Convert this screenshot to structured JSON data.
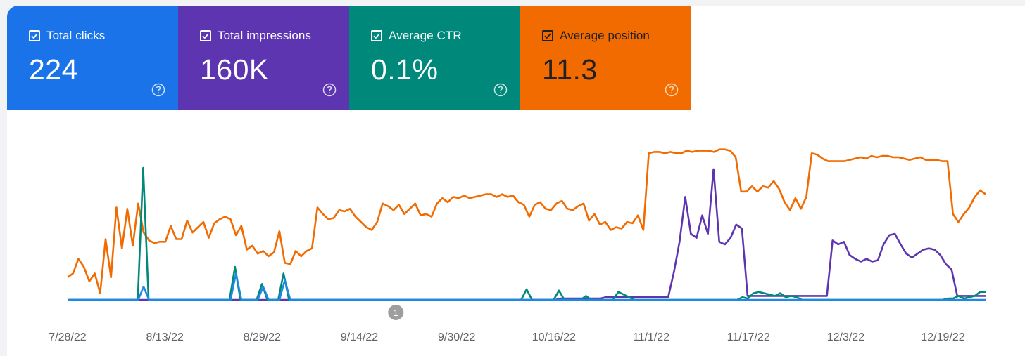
{
  "metrics": [
    {
      "label": "Total clicks",
      "value": "224",
      "color": "#1a73e8",
      "checked": true
    },
    {
      "label": "Total impressions",
      "value": "160K",
      "color": "#5e35b1",
      "checked": true
    },
    {
      "label": "Average CTR",
      "value": "0.1%",
      "color": "#00897b",
      "checked": true
    },
    {
      "label": "Average position",
      "value": "11.3",
      "color": "#f16b00",
      "checked": true
    }
  ],
  "icons": {
    "checkbox": "check-icon",
    "help": "help-circle-icon"
  },
  "chart_data": {
    "type": "line",
    "x_start": "7/28/22",
    "x_end": "12/26/22",
    "x_tick_labels": [
      "7/28/22",
      "8/13/22",
      "8/29/22",
      "9/14/22",
      "9/30/22",
      "10/16/22",
      "11/1/22",
      "11/17/22",
      "12/3/22",
      "12/19/22"
    ],
    "y_axis_visible": false,
    "grid": false,
    "legend": "metric cards above chart",
    "annotations": [
      {
        "label": "1",
        "x": "9/20/22"
      }
    ],
    "series": [
      {
        "name": "Average position",
        "color": "#f16b00",
        "values": [
          0.17,
          0.2,
          0.31,
          0.25,
          0.14,
          0.2,
          0.05,
          0.46,
          0.17,
          0.7,
          0.39,
          0.69,
          0.41,
          0.73,
          0.51,
          0.45,
          0.43,
          0.44,
          0.44,
          0.56,
          0.46,
          0.46,
          0.6,
          0.51,
          0.55,
          0.59,
          0.47,
          0.58,
          0.61,
          0.63,
          0.61,
          0.49,
          0.56,
          0.38,
          0.41,
          0.35,
          0.37,
          0.33,
          0.36,
          0.52,
          0.28,
          0.27,
          0.37,
          0.33,
          0.37,
          0.39,
          0.7,
          0.65,
          0.61,
          0.62,
          0.68,
          0.67,
          0.69,
          0.63,
          0.59,
          0.55,
          0.53,
          0.59,
          0.73,
          0.71,
          0.68,
          0.72,
          0.65,
          0.69,
          0.73,
          0.64,
          0.65,
          0.63,
          0.73,
          0.77,
          0.74,
          0.78,
          0.77,
          0.79,
          0.77,
          0.78,
          0.79,
          0.8,
          0.8,
          0.78,
          0.8,
          0.78,
          0.79,
          0.74,
          0.72,
          0.63,
          0.72,
          0.74,
          0.69,
          0.68,
          0.73,
          0.75,
          0.69,
          0.68,
          0.71,
          0.73,
          0.6,
          0.65,
          0.57,
          0.59,
          0.53,
          0.55,
          0.54,
          0.59,
          0.58,
          0.64,
          0.53,
          1.11,
          1.12,
          1.12,
          1.11,
          1.12,
          1.11,
          1.11,
          1.13,
          1.12,
          1.13,
          1.13,
          1.13,
          1.12,
          1.14,
          1.14,
          1.13,
          1.08,
          0.82,
          0.82,
          0.86,
          0.82,
          0.86,
          0.85,
          0.9,
          0.84,
          0.74,
          0.68,
          0.77,
          0.69,
          0.78,
          1.11,
          1.1,
          1.07,
          1.05,
          1.05,
          1.05,
          1.05,
          1.06,
          1.07,
          1.08,
          1.07,
          1.09,
          1.08,
          1.09,
          1.09,
          1.08,
          1.08,
          1.07,
          1.06,
          1.07,
          1.08,
          1.06,
          1.06,
          1.06,
          1.05,
          1.05,
          0.65,
          0.59,
          0.65,
          0.7,
          0.78,
          0.83,
          0.8
        ]
      },
      {
        "name": "Total impressions",
        "color": "#5e35b1",
        "values": [
          0.0,
          0.0,
          0.0,
          0.0,
          0.0,
          0.0,
          0.0,
          0.0,
          0.0,
          0.0,
          0.0,
          0.0,
          0.0,
          0.0,
          0.0,
          0.0,
          0.0,
          0.0,
          0.0,
          0.0,
          0.0,
          0.0,
          0.0,
          0.0,
          0.0,
          0.0,
          0.0,
          0.0,
          0.0,
          0.0,
          0.0,
          0.0,
          0.0,
          0.0,
          0.0,
          0.0,
          0.0,
          0.0,
          0.0,
          0.0,
          0.0,
          0.0,
          0.0,
          0.0,
          0.0,
          0.0,
          0.0,
          0.0,
          0.0,
          0.0,
          0.0,
          0.0,
          0.0,
          0.0,
          0.0,
          0.0,
          0.0,
          0.0,
          0.0,
          0.0,
          0.0,
          0.0,
          0.0,
          0.0,
          0.0,
          0.0,
          0.0,
          0.0,
          0.0,
          0.0,
          0.0,
          0.0,
          0.0,
          0.0,
          0.0,
          0.0,
          0.0,
          0.0,
          0.0,
          0.0,
          0.0,
          0.0,
          0.0,
          0.0,
          0.0,
          0.0,
          0.0,
          0.01,
          0.01,
          0.01,
          0.01,
          0.01,
          0.01,
          0.01,
          0.01,
          0.02,
          0.02,
          0.02,
          0.02,
          0.02,
          0.02,
          0.02,
          0.02,
          0.02,
          0.02,
          0.02,
          0.02,
          0.21,
          0.44,
          0.78,
          0.5,
          0.47,
          0.64,
          0.5,
          0.99,
          0.44,
          0.42,
          0.47,
          0.57,
          0.54,
          0.03,
          0.03,
          0.03,
          0.03,
          0.03,
          0.03,
          0.03,
          0.03,
          0.03,
          0.03,
          0.03,
          0.03,
          0.03,
          0.03,
          0.03,
          0.45,
          0.42,
          0.44,
          0.34,
          0.31,
          0.29,
          0.31,
          0.29,
          0.3,
          0.42,
          0.49,
          0.5,
          0.42,
          0.35,
          0.32,
          0.35,
          0.38,
          0.39,
          0.38,
          0.34,
          0.27,
          0.23,
          0.03,
          0.03,
          0.03,
          0.03,
          0.03,
          0.03
        ]
      },
      {
        "name": "Average CTR",
        "color": "#00897b",
        "values": [
          0.0,
          0.0,
          0.0,
          0.0,
          0.0,
          0.0,
          0.0,
          0.0,
          0.0,
          0.0,
          0.0,
          0.0,
          0.0,
          0.0,
          1.0,
          0.0,
          0.0,
          0.0,
          0.0,
          0.0,
          0.0,
          0.0,
          0.0,
          0.0,
          0.0,
          0.0,
          0.0,
          0.0,
          0.0,
          0.0,
          0.0,
          0.25,
          0.0,
          0.0,
          0.0,
          0.0,
          0.12,
          0.0,
          0.0,
          0.0,
          0.2,
          0.0,
          0.0,
          0.0,
          0.0,
          0.0,
          0.0,
          0.0,
          0.0,
          0.0,
          0.0,
          0.0,
          0.0,
          0.0,
          0.0,
          0.0,
          0.0,
          0.0,
          0.0,
          0.0,
          0.0,
          0.0,
          0.0,
          0.0,
          0.0,
          0.0,
          0.0,
          0.0,
          0.0,
          0.0,
          0.0,
          0.0,
          0.0,
          0.0,
          0.0,
          0.0,
          0.0,
          0.0,
          0.0,
          0.0,
          0.0,
          0.0,
          0.0,
          0.0,
          0.0,
          0.08,
          0.0,
          0.0,
          0.0,
          0.0,
          0.0,
          0.07,
          0.0,
          0.0,
          0.0,
          0.0,
          0.03,
          0.0,
          0.0,
          0.0,
          0.0,
          0.0,
          0.06,
          0.04,
          0.02,
          0.0,
          0.0,
          0.0,
          0.0,
          0.0,
          0.0,
          0.0,
          0.0,
          0.0,
          0.0,
          0.0,
          0.0,
          0.0,
          0.0,
          0.0,
          0.0,
          0.0,
          0.0,
          0.0,
          0.0,
          0.02,
          0.01,
          0.05,
          0.06,
          0.05,
          0.04,
          0.03,
          0.05,
          0.02,
          0.03,
          0.02,
          0.0,
          0.0,
          0.0,
          0.0,
          0.0,
          0.0,
          0.0,
          0.0,
          0.0,
          0.0,
          0.0,
          0.0,
          0.0,
          0.0,
          0.0,
          0.0,
          0.0,
          0.0,
          0.0,
          0.0,
          0.0,
          0.0,
          0.0,
          0.0,
          0.0,
          0.0,
          0.0,
          0.01,
          0.01,
          0.03,
          0.01,
          0.02,
          0.03,
          0.06,
          0.06
        ]
      },
      {
        "name": "Total clicks",
        "color": "#1e88e5",
        "values": [
          0.0,
          0.0,
          0.0,
          0.0,
          0.0,
          0.0,
          0.0,
          0.0,
          0.0,
          0.0,
          0.0,
          0.0,
          0.0,
          0.0,
          0.1,
          0.0,
          0.0,
          0.0,
          0.0,
          0.0,
          0.0,
          0.0,
          0.0,
          0.0,
          0.0,
          0.0,
          0.0,
          0.0,
          0.0,
          0.0,
          0.0,
          0.2,
          0.0,
          0.0,
          0.0,
          0.0,
          0.1,
          0.0,
          0.0,
          0.0,
          0.15,
          0.0,
          0.0,
          0.0,
          0.0,
          0.0,
          0.0,
          0.0,
          0.0,
          0.0,
          0.0,
          0.0,
          0.0,
          0.0,
          0.0,
          0.0,
          0.0,
          0.0,
          0.0,
          0.0,
          0.0,
          0.0,
          0.0,
          0.0,
          0.0,
          0.0,
          0.0,
          0.0,
          0.0,
          0.0,
          0.0,
          0.0,
          0.0,
          0.0,
          0.0,
          0.0,
          0.0,
          0.0,
          0.0,
          0.0,
          0.0,
          0.0,
          0.0,
          0.0,
          0.0,
          0.0,
          0.0,
          0.0,
          0.0,
          0.0,
          0.0,
          0.0,
          0.0,
          0.0,
          0.0,
          0.0,
          0.0,
          0.0,
          0.0,
          0.0,
          0.0,
          0.0,
          0.0,
          0.0,
          0.0,
          0.0,
          0.0,
          0.0,
          0.0,
          0.0,
          0.0,
          0.0,
          0.0,
          0.0,
          0.0,
          0.0,
          0.0,
          0.0,
          0.0,
          0.0,
          0.0,
          0.0,
          0.0,
          0.0,
          0.0,
          0.0,
          0.0,
          0.0,
          0.0,
          0.0,
          0.0,
          0.0,
          0.0,
          0.0,
          0.0,
          0.0,
          0.0,
          0.0,
          0.0,
          0.0,
          0.0,
          0.0,
          0.0,
          0.0,
          0.0,
          0.0,
          0.0,
          0.0,
          0.0,
          0.0,
          0.0,
          0.0,
          0.0,
          0.0,
          0.0,
          0.0,
          0.0,
          0.0,
          0.0,
          0.0,
          0.0,
          0.0,
          0.0,
          0.0,
          0.0,
          0.0,
          0.0,
          0.0,
          0.0,
          0.0
        ]
      }
    ]
  }
}
